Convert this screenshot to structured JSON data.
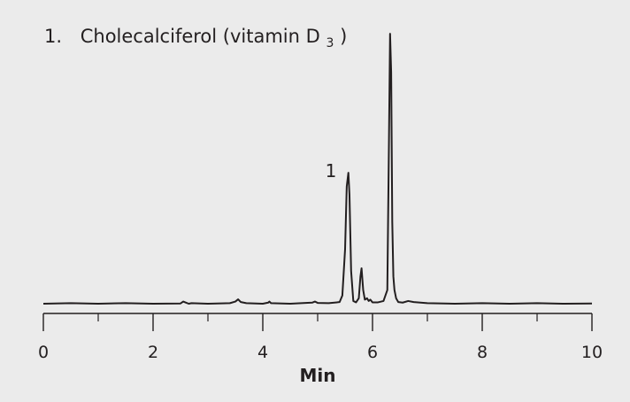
{
  "chart_data": {
    "type": "line",
    "legend": {
      "number": "1.",
      "name_prefix": "Cholecalciferol (vitamin D",
      "subscript": "3",
      "suffix": ")"
    },
    "peak_labels": [
      {
        "text": "1",
        "x": 5.5
      }
    ],
    "xlabel": "Min",
    "xlim": [
      0,
      10
    ],
    "x_major_ticks": [
      0,
      2,
      4,
      6,
      8,
      10
    ],
    "x_tick_labels": [
      "0",
      "2",
      "4",
      "6",
      "8",
      "10"
    ],
    "x_minor_ticks": [
      1,
      3,
      5,
      7,
      9
    ],
    "ylim": [
      0,
      1.0
    ],
    "y_axis_visible": false,
    "grid": false,
    "series": [
      {
        "color": "#231f20",
        "x": [
          0.0,
          0.5,
          1.0,
          1.5,
          2.0,
          2.5,
          2.55,
          2.6,
          2.65,
          2.7,
          3.0,
          3.4,
          3.5,
          3.55,
          3.6,
          3.7,
          4.0,
          4.1,
          4.12,
          4.15,
          4.5,
          4.7,
          4.9,
          4.95,
          5.0,
          5.2,
          5.4,
          5.45,
          5.5,
          5.53,
          5.56,
          5.58,
          5.61,
          5.65,
          5.7,
          5.75,
          5.78,
          5.8,
          5.83,
          5.86,
          5.9,
          5.93,
          5.96,
          6.0,
          6.1,
          6.2,
          6.27,
          6.3,
          6.32,
          6.34,
          6.36,
          6.38,
          6.4,
          6.43,
          6.47,
          6.55,
          6.65,
          6.75,
          7.0,
          7.5,
          8.0,
          8.5,
          9.0,
          9.5,
          10.0
        ],
        "y": [
          0.0,
          0.002,
          0.0,
          0.002,
          0.0,
          0.001,
          0.008,
          0.004,
          0.0,
          0.002,
          0.0,
          0.002,
          0.008,
          0.016,
          0.006,
          0.002,
          0.0,
          0.004,
          0.008,
          0.002,
          0.0,
          0.002,
          0.004,
          0.008,
          0.003,
          0.002,
          0.006,
          0.03,
          0.2,
          0.43,
          0.48,
          0.4,
          0.12,
          0.01,
          0.005,
          0.02,
          0.1,
          0.13,
          0.05,
          0.015,
          0.02,
          0.01,
          0.015,
          0.005,
          0.005,
          0.01,
          0.05,
          0.6,
          0.99,
          0.85,
          0.3,
          0.1,
          0.05,
          0.02,
          0.006,
          0.004,
          0.01,
          0.006,
          0.002,
          0.0,
          0.002,
          0.0,
          0.002,
          0.0,
          0.001
        ]
      }
    ]
  }
}
